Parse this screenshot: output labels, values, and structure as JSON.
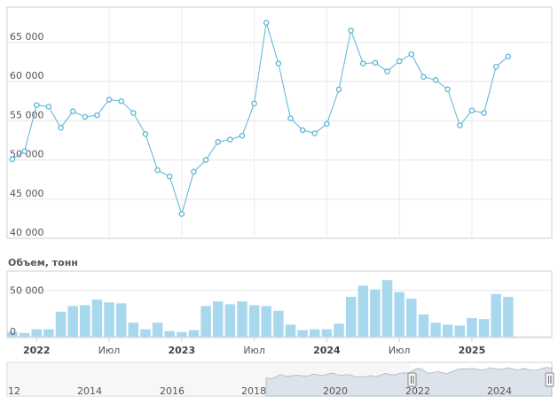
{
  "chart_data": [
    {
      "type": "line",
      "series": [
        {
          "values": [
            50100,
            51100,
            57000,
            56800,
            54100,
            56200,
            55500,
            55700,
            57700,
            57500,
            56000,
            53300,
            48700,
            47900,
            43100,
            48500,
            50000,
            52300,
            52600,
            53100,
            57200,
            67500,
            62300,
            55300,
            53800,
            53400,
            54600,
            59000,
            66500,
            62300,
            62400,
            61300,
            62600,
            63500,
            60600,
            60200,
            59000,
            54400,
            56300,
            56000,
            61900,
            63200
          ]
        }
      ],
      "y_ticks": [
        "40 000",
        "45 000",
        "50 000",
        "55 000",
        "60 000",
        "65 000"
      ],
      "ylim": [
        40000,
        69500
      ],
      "grid": true,
      "color": "#5ab4d8"
    },
    {
      "type": "bar",
      "title": "Объем, тонн",
      "x_ticks": [
        "2022",
        "Июл",
        "2023",
        "Июл",
        "2024",
        "Июл",
        "2025"
      ],
      "y_ticks": [
        "0",
        "50 000"
      ],
      "series": [
        {
          "values": [
            5000,
            4000,
            8000,
            8000,
            27000,
            33000,
            34000,
            40000,
            37000,
            36000,
            15000,
            8000,
            15000,
            6000,
            5000,
            7000,
            33000,
            38000,
            35000,
            38000,
            34000,
            33000,
            28000,
            13000,
            7000,
            8000,
            8000,
            14000,
            43000,
            55000,
            51000,
            61000,
            48000,
            41000,
            24000,
            15000,
            13000,
            12000,
            20000,
            19000,
            46000,
            43000
          ]
        }
      ],
      "color": "#a8d8ee"
    }
  ],
  "navigator": {
    "labels": [
      "12",
      "2014",
      "2016",
      "2018",
      "2020",
      "2022",
      "2024"
    ]
  }
}
